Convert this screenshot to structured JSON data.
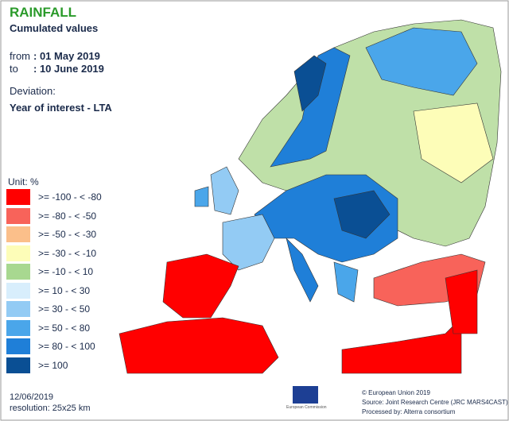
{
  "header": {
    "title": "RAINFALL",
    "subtitle": "Cumulated values",
    "from_label": "from",
    "from_value": ": 01 May 2019",
    "to_label": "to",
    "to_value": ": 10 June 2019",
    "deviation_label": "Deviation:",
    "deviation_value": "Year of interest - LTA"
  },
  "legend": {
    "unit": "Unit: %",
    "items": [
      {
        "label": ">= -100 - < -80",
        "color": "#ff0000"
      },
      {
        "label": ">= -80 - < -50",
        "color": "#f8635a"
      },
      {
        "label": ">= -50 - < -30",
        "color": "#fbbf8a"
      },
      {
        "label": ">= -30 - < -10",
        "color": "#fdfdb8"
      },
      {
        "label": ">= -10 - < 10",
        "color": "#a8d890"
      },
      {
        "label": ">= 10 - < 30",
        "color": "#d8eefc"
      },
      {
        "label": ">= 30 - < 50",
        "color": "#93cbf4"
      },
      {
        "label": ">= 50 - < 80",
        "color": "#4aa6ea"
      },
      {
        "label": ">= 80 - < 100",
        "color": "#1f7fd8"
      },
      {
        "label": ">= 100",
        "color": "#0a4f94"
      }
    ]
  },
  "footer": {
    "date": "12/06/2019",
    "resolution": "resolution: 25x25 km",
    "logo_text": "European Commission",
    "copyright": "© European Union 2019",
    "source": "Source: Joint Research Centre (JRC MARS4CAST)",
    "processed": "Processed by: Alterra consortium"
  }
}
